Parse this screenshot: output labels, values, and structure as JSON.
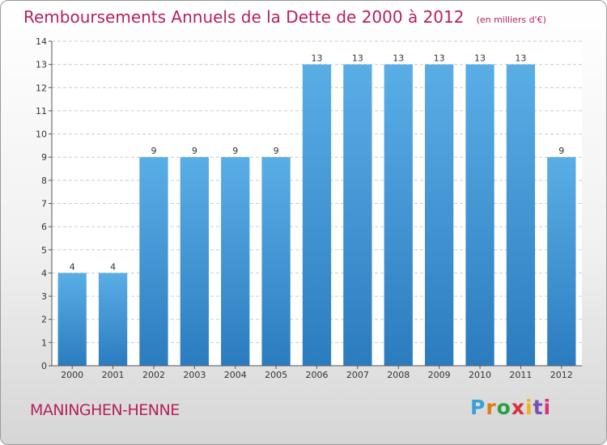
{
  "title": "Remboursements Annuels de la Dette de 2000 à 2012",
  "unit_note": "(en milliers d'€)",
  "commune": "MANINGHEN-HENNE",
  "brand": {
    "letters": [
      "P",
      "r",
      "o",
      "x",
      "i",
      "t",
      "i"
    ],
    "colors": [
      "#3aa0d8",
      "#e07b1a",
      "#2e9e44",
      "#d8303a",
      "#f0b21c",
      "#7a4fb0",
      "#d8307a"
    ]
  },
  "chart_data": {
    "type": "bar",
    "categories": [
      "2000",
      "2001",
      "2002",
      "2003",
      "2004",
      "2005",
      "2006",
      "2007",
      "2008",
      "2009",
      "2010",
      "2011",
      "2012"
    ],
    "values": [
      4,
      4,
      9,
      9,
      9,
      9,
      13,
      13,
      13,
      13,
      13,
      13,
      9
    ],
    "data_labels": [
      "4",
      "4",
      "9",
      "9",
      "9",
      "9",
      "13",
      "13",
      "13",
      "13",
      "13",
      "13",
      "9"
    ],
    "title": "Remboursements Annuels de la Dette de 2000 à 2012",
    "ylim": [
      0,
      14
    ],
    "yticks": [
      0,
      1,
      2,
      3,
      4,
      5,
      6,
      7,
      8,
      9,
      10,
      11,
      12,
      13,
      14
    ],
    "grid": true,
    "colors": {
      "bar_top": "#5aaee6",
      "bar_bottom": "#2b7cbf",
      "grid": "#cccccc"
    }
  }
}
